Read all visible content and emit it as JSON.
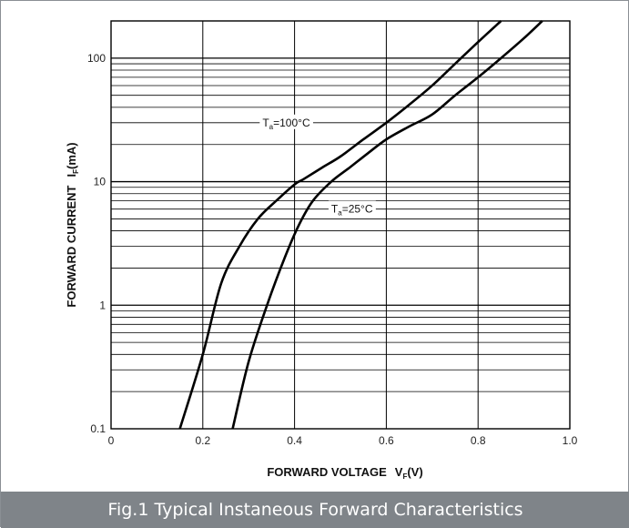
{
  "caption": "Fig.1 Typical Instaneous Forward Characteristics",
  "chart_data": {
    "type": "line",
    "title": "",
    "xlabel": {
      "main": "FORWARD VOLTAGE",
      "symbol": "V",
      "subscript": "F",
      "unit": "(V)"
    },
    "ylabel": {
      "main": "FORWARD CURRENT",
      "symbol": "I",
      "subscript": "F",
      "unit": "(mA)"
    },
    "xlim": [
      0,
      1.0
    ],
    "ylim": [
      0.1,
      200
    ],
    "yscale": "log",
    "grid": true,
    "x_ticks": [
      "0",
      "0.2",
      "0.4",
      "0.6",
      "0.8",
      "1.0"
    ],
    "y_ticks": [
      "0.1",
      "1",
      "10",
      "100"
    ],
    "series": [
      {
        "name": "Ta=100°C",
        "label_symbol": "T",
        "label_subscript": "a",
        "label_value": "=100°C",
        "x": [
          0.15,
          0.2,
          0.24,
          0.28,
          0.32,
          0.36,
          0.4,
          0.42,
          0.46,
          0.5,
          0.55,
          0.6,
          0.65,
          0.7,
          0.75,
          0.8,
          0.85
        ],
        "y": [
          0.1,
          0.4,
          1.5,
          3.0,
          5.0,
          7.0,
          9.5,
          10.5,
          13.0,
          16.0,
          22.0,
          30.0,
          42.0,
          60.0,
          90.0,
          135.0,
          200.0
        ],
        "color": "#000000"
      },
      {
        "name": "Ta=25°C",
        "label_symbol": "T",
        "label_subscript": "a",
        "label_value": "=25°C",
        "x": [
          0.265,
          0.3,
          0.34,
          0.38,
          0.41,
          0.44,
          0.48,
          0.52,
          0.56,
          0.6,
          0.65,
          0.7,
          0.75,
          0.8,
          0.85,
          0.9,
          0.94
        ],
        "y": [
          0.1,
          0.35,
          1.0,
          2.5,
          4.5,
          7.0,
          10.0,
          13.0,
          17.0,
          22.0,
          28.0,
          35.0,
          50.0,
          70.0,
          100.0,
          145.0,
          200.0
        ],
        "color": "#000000"
      }
    ]
  }
}
